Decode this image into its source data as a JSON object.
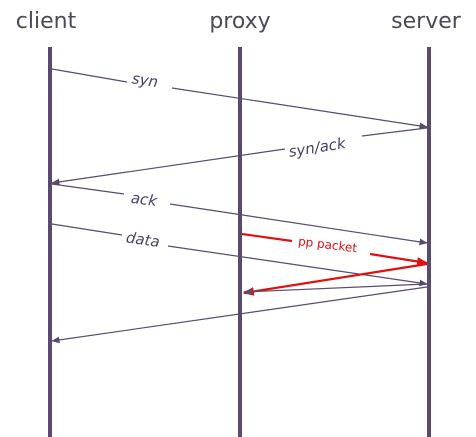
{
  "actors": {
    "client": "client",
    "proxy": "proxy",
    "server": "server"
  },
  "messages": {
    "syn": "syn",
    "synack": "syn/ack",
    "ack": "ack",
    "data": "data",
    "pp_packet": "pp packet"
  },
  "colors": {
    "lifeline": "#5a4a6e",
    "message": "#5a4a6e",
    "highlight": "#e01010"
  }
}
